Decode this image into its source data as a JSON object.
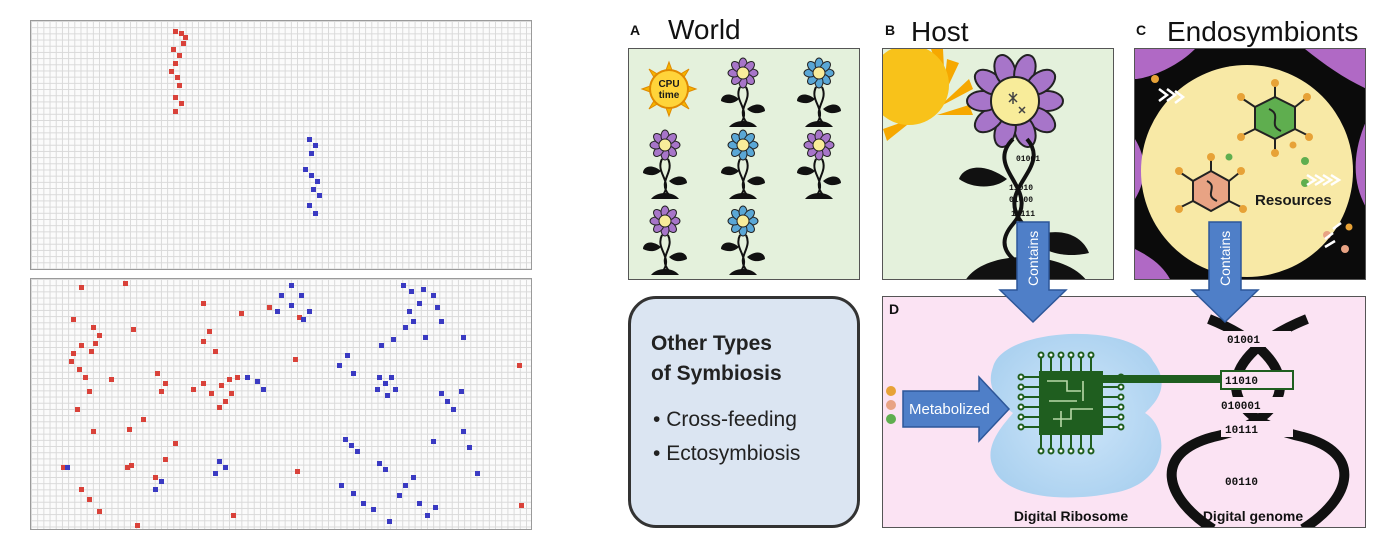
{
  "panels": {
    "A": {
      "letter": "A",
      "title": "World",
      "cpu_line1": "CPU",
      "cpu_line2": "time"
    },
    "B": {
      "letter": "B",
      "title": "Host",
      "bits": [
        "01001",
        "11010",
        "01000",
        "10111"
      ]
    },
    "C": {
      "letter": "C",
      "title": "Endosymbionts",
      "resources_label": "Resources"
    },
    "D": {
      "letter": "D",
      "metabolized_label": "Metabolized",
      "ribosome_label": "Digital Ribosome",
      "genome_label": "Digital genome",
      "genome_bits": [
        "01001",
        "11010",
        "010001",
        "10111",
        "00110"
      ]
    }
  },
  "arrows": {
    "contains_left": "Contains",
    "contains_right": "Contains"
  },
  "other_types": {
    "title_line1": "Other Types",
    "title_line2": "of Symbiosis",
    "items": [
      "Cross-feeding",
      "Ectosymbiosis"
    ]
  },
  "colors": {
    "red_cells": "#d9423a",
    "blue_cells": "#3a3ac2",
    "world_bg": "#e4f1dc",
    "endo_bg": "#f8e9a6",
    "ribosome_chip": "#1f5e1f",
    "arrow_blue": "#4f7fc8",
    "panel_d_bg": "#fbe3f3"
  }
}
